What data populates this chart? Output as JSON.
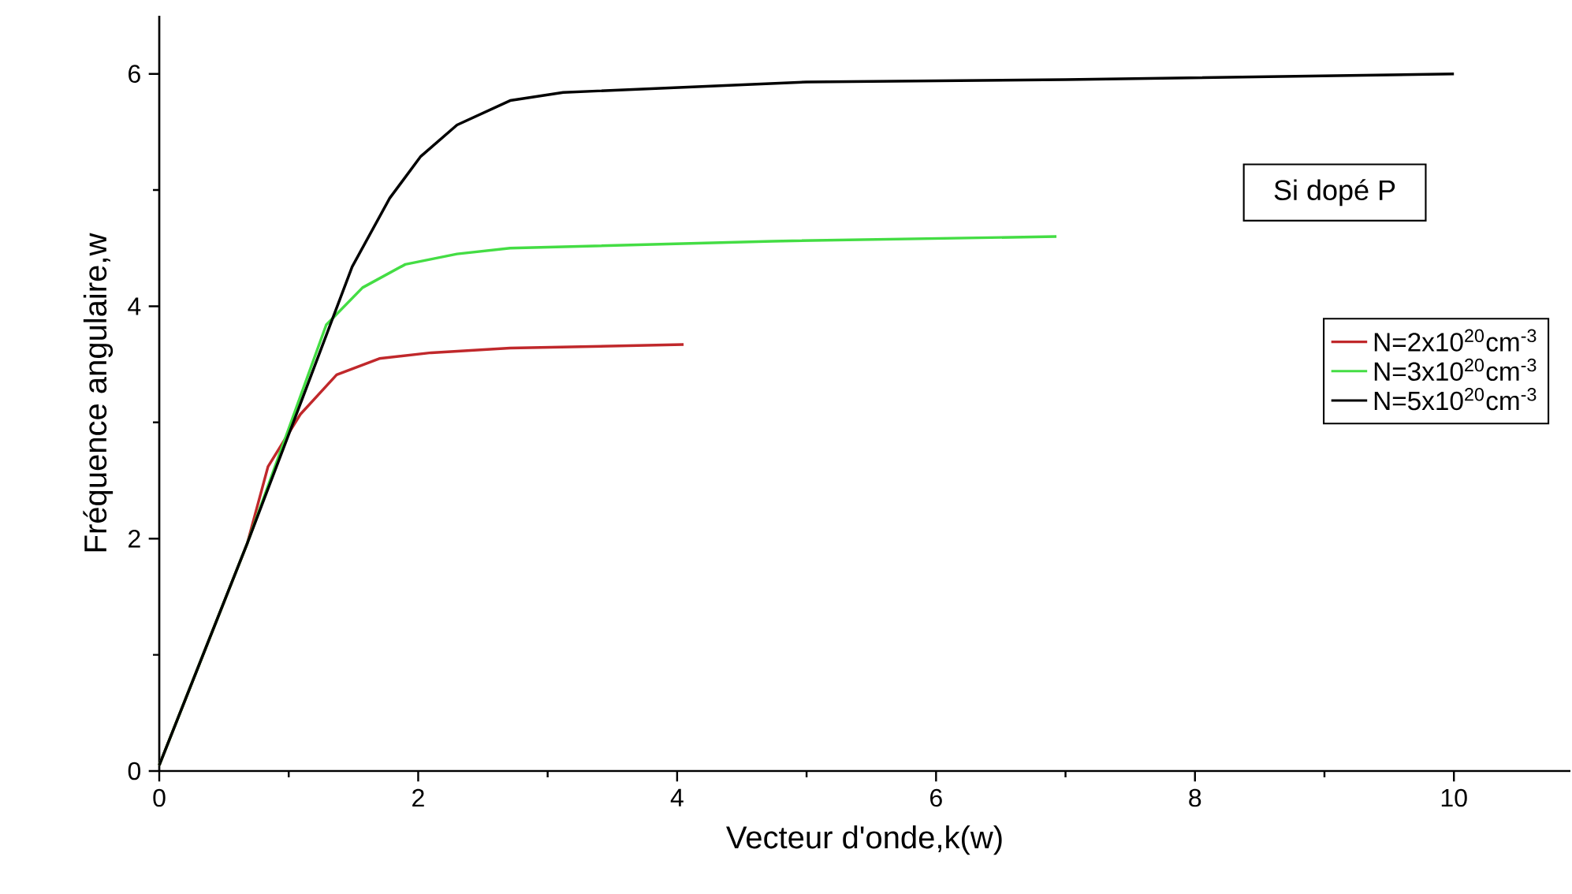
{
  "chart_data": {
    "type": "line",
    "xlabel": "Vecteur d'onde,k(w)",
    "ylabel": "Fréquence angulaire,w",
    "legend_title": "Si dopé P",
    "legend": "right",
    "line_style": "solid",
    "marker": "none",
    "grid": false,
    "xlim": [
      0,
      10.9
    ],
    "ylim": [
      0,
      6.5
    ],
    "xticks": [
      0,
      2,
      4,
      6,
      8,
      10
    ],
    "yticks": [
      0,
      2,
      4,
      6
    ],
    "series": [
      {
        "name": "N=2x10$^{20}$cm$^{-3}$",
        "color": "#c0282b",
        "x": [
          0,
          0.68,
          0.84,
          1.09,
          1.37,
          1.7,
          2.1,
          2.71,
          4.05
        ],
        "values": [
          0.05,
          1.96,
          2.62,
          3.07,
          3.41,
          3.55,
          3.6,
          3.64,
          3.67
        ]
      },
      {
        "name": "N=3x10$^{20}$cm$^{-3}$",
        "color": "#44dd44",
        "x": [
          0,
          0.68,
          1.04,
          1.29,
          1.57,
          1.9,
          2.3,
          2.71,
          4.74,
          6.93
        ],
        "values": [
          0.05,
          1.96,
          3.07,
          3.84,
          4.16,
          4.36,
          4.45,
          4.5,
          4.56,
          4.6
        ]
      },
      {
        "name": "N=5x10$^{20}$cm$^{-3}$",
        "color": "#000000",
        "x": [
          0,
          0.68,
          1.09,
          1.49,
          1.78,
          2.02,
          2.3,
          2.71,
          3.12,
          5,
          7,
          10
        ],
        "values": [
          0.05,
          1.96,
          3.16,
          4.34,
          4.93,
          5.29,
          5.56,
          5.77,
          5.84,
          5.93,
          5.95,
          6.0
        ]
      }
    ]
  }
}
